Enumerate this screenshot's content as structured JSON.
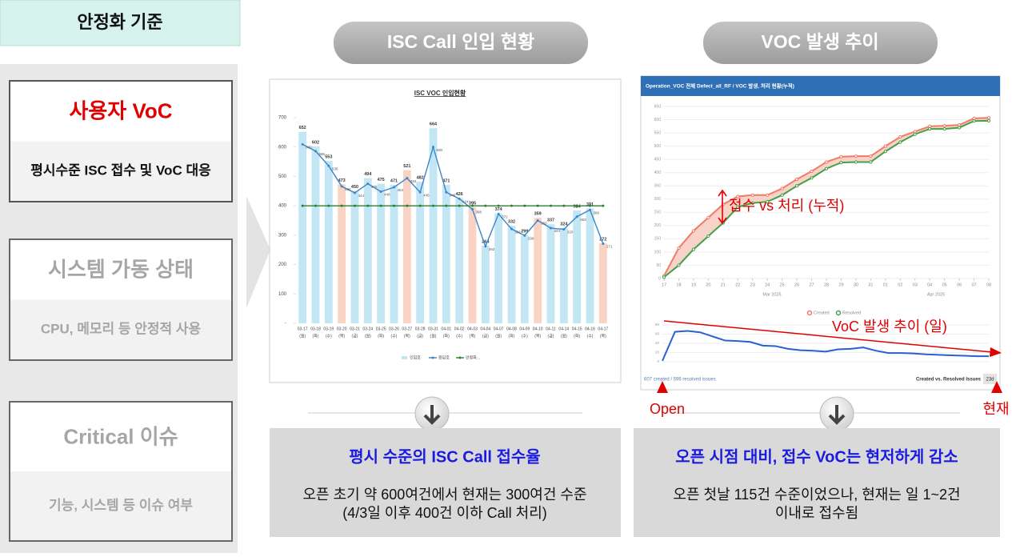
{
  "header": {
    "title": "안정화 기준"
  },
  "criteria": [
    {
      "title": "사용자 VoC",
      "desc": "평시수준 ISC 접수 및 VoC 대응"
    },
    {
      "title": "시스템 가동 상태",
      "desc": "CPU, 메모리 등 안정적 사용"
    },
    {
      "title": "Critical 이슈",
      "desc": "기능, 시스템 등 이슈 여부"
    }
  ],
  "panels": [
    {
      "heading": "ISC Call 인입 현황",
      "summary_title": "평시 수준의 ISC Call 접수율",
      "summary_lines": [
        "오픈 초기 약 600여건에서 현재는 300여건 수준",
        "(4/3일 이후 400건 이하 Call 처리)"
      ]
    },
    {
      "heading": "VOC 발생 추이",
      "summary_title": "오픈 시점 대비, 접수 VoC는 현저하게 감소",
      "summary_lines": [
        "오픈 첫날 115건 수준이었으나, 현재는 일 1~2건",
        "이내로 접수됨"
      ]
    }
  ],
  "annotations": {
    "cumulative": "접수 vs 처리 (누적)",
    "daily": "VoC 발생 추이 (일)",
    "open": "Open",
    "now": "현재"
  },
  "chart_data": [
    {
      "type": "bar",
      "title": "ISC VOC 인입현황",
      "categories": [
        "03-17",
        "03-18",
        "03-19",
        "03-20",
        "03-21",
        "03-24",
        "03-25",
        "03-26",
        "03-27",
        "03-28",
        "03-31",
        "04-01",
        "04-02",
        "04-03",
        "04-04",
        "04-07",
        "04-08",
        "04-09",
        "04-10",
        "04-11",
        "04-14",
        "04-15",
        "04-16",
        "04-17"
      ],
      "category_days": [
        "(월)",
        "(화)",
        "(수)",
        "(목)",
        "(금)",
        "(월)",
        "(화)",
        "(수)",
        "(목)",
        "(금)",
        "(월)",
        "(화)",
        "(수)",
        "(목)",
        "(금)",
        "(월)",
        "(화)",
        "(수)",
        "(목)",
        "(금)",
        "(월)",
        "(화)",
        "(수)",
        "(목)"
      ],
      "ylim": [
        0,
        700
      ],
      "yticks": [
        {
          "value": 0,
          "label": "-"
        },
        100,
        200,
        300,
        400,
        500,
        600,
        700
      ],
      "series": [
        {
          "name": "인입호",
          "type": "bar",
          "color": "#c3e6f4",
          "colors": [
            "#c3e6f4",
            "#c3e6f4",
            "#c3e6f4",
            "#f9d3c4",
            "#c3e6f4",
            "#c3e6f4",
            "#c3e6f4",
            "#c3e6f4",
            "#f9d3c4",
            "#c3e6f4",
            "#c3e6f4",
            "#c3e6f4",
            "#c3e6f4",
            "#f9d3c4",
            "#c3e6f4",
            "#c3e6f4",
            "#c3e6f4",
            "#c3e6f4",
            "#f9d3c4",
            "#c3e6f4",
            "#c3e6f4",
            "#c3e6f4",
            "#c3e6f4",
            "#f9d3c4"
          ],
          "values": [
            652,
            602,
            553,
            473,
            450,
            494,
            475,
            471,
            521,
            482,
            664,
            471,
            426,
            395,
            264,
            374,
            332,
            299,
            359,
            337,
            324,
            384,
            391,
            272
          ]
        },
        {
          "name": "응답호",
          "type": "line",
          "color": "#3a86c8",
          "values": [
            609,
            586,
            536,
            466,
            444,
            475,
            448,
            463,
            494,
            446,
            600,
            446,
            424,
            388,
            262,
            372,
            321,
            299,
            350,
            324,
            320,
            363,
            386,
            271
          ]
        },
        {
          "name": "안정화...",
          "type": "line",
          "color": "#2e7d32",
          "values": [
            400,
            400,
            400,
            400,
            400,
            400,
            400,
            400,
            400,
            400,
            400,
            400,
            400,
            400,
            400,
            400,
            400,
            400,
            400,
            400,
            400,
            400,
            400,
            400
          ]
        }
      ]
    },
    {
      "type": "line",
      "title": "Operation_VOC 전체 Defect_all_RF / VOC 발생, 처리 현황(누적)",
      "categories": [
        "17",
        "18",
        "19",
        "20",
        "21",
        "22",
        "23",
        "24",
        "25",
        "26",
        "27",
        "28",
        "29",
        "30",
        "31",
        "01",
        "02",
        "03",
        "04",
        "05",
        "06",
        "07",
        "08"
      ],
      "months": [
        "Mar 2025",
        "Apr 2025"
      ],
      "ylim": [
        0,
        650
      ],
      "yticks": [
        0,
        50,
        100,
        150,
        200,
        250,
        300,
        350,
        400,
        450,
        500,
        550,
        600,
        650
      ],
      "series": [
        {
          "name": "Created",
          "color": "#f07a66",
          "values": [
            10,
            115,
            180,
            230,
            280,
            310,
            315,
            315,
            340,
            375,
            405,
            440,
            460,
            462,
            462,
            500,
            535,
            555,
            575,
            577,
            580,
            605,
            607
          ]
        },
        {
          "name": "Resolved",
          "color": "#43a047",
          "values": [
            5,
            50,
            110,
            160,
            210,
            270,
            285,
            290,
            315,
            350,
            380,
            415,
            438,
            440,
            440,
            480,
            515,
            545,
            565,
            565,
            570,
            595,
            596
          ]
        }
      ],
      "footer_left": "607 created / 596 resolved issues",
      "footer_right": "Created vs. Resolved Issues",
      "range": "23d"
    },
    {
      "type": "line",
      "categories": [
        null,
        null,
        null,
        null,
        null,
        null,
        null,
        null,
        null,
        null,
        null,
        null,
        null,
        null,
        null,
        null,
        null,
        null,
        null,
        null,
        null,
        null,
        null,
        null,
        null,
        null,
        null
      ],
      "ylim": [
        0,
        80
      ],
      "yticks": [
        0,
        20,
        40,
        60,
        80
      ],
      "color": "#2a5fcf",
      "values": [
        2,
        65,
        67,
        64,
        55,
        46,
        45,
        43,
        35,
        34,
        28,
        25,
        24,
        22,
        27,
        28,
        31,
        24,
        19,
        19,
        18,
        16,
        15,
        14,
        13,
        12,
        12
      ]
    }
  ]
}
